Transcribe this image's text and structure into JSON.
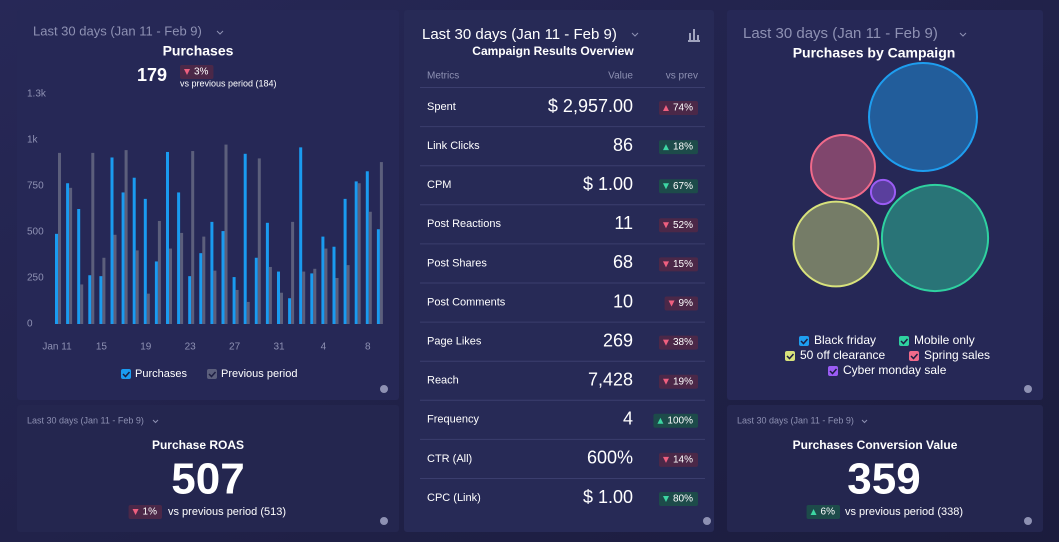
{
  "chart_data": [
    {
      "type": "bar",
      "date_range": "Last 30 days (Jan 11 - Feb 9)",
      "title": "Purchases",
      "categories": [
        "Jan 11",
        null,
        null,
        null,
        "15",
        null,
        null,
        null,
        "19",
        null,
        null,
        null,
        "23",
        null,
        null,
        null,
        "27",
        null,
        null,
        null,
        "31",
        null,
        null,
        null,
        "4",
        null,
        null,
        null,
        "8",
        null
      ],
      "series": [
        {
          "name": "Purchases",
          "color": "#1a9bf0",
          "values": [
            490,
            765,
            625,
            265,
            260,
            905,
            715,
            795,
            680,
            340,
            935,
            715,
            260,
            385,
            555,
            505,
            255,
            925,
            360,
            550,
            285,
            140,
            960,
            275,
            475,
            420,
            680,
            775,
            830,
            515
          ]
        },
        {
          "name": "Previous period",
          "color": "#5c5f7c",
          "values": [
            930,
            740,
            215,
            930,
            360,
            485,
            945,
            400,
            165,
            560,
            410,
            495,
            940,
            475,
            290,
            975,
            185,
            120,
            900,
            310,
            170,
            555,
            285,
            300,
            410,
            250,
            320,
            765,
            610,
            880
          ]
        }
      ],
      "ylim": [
        0,
        1250
      ],
      "yticks": [
        0,
        250,
        500,
        750,
        {
          "value": 1000,
          "label": "1k"
        },
        {
          "value": 1250,
          "label": "1.3k"
        }
      ],
      "grid": false
    },
    {
      "type": "bubble",
      "date_range": "Last 30 days (Jan 11 - Feb 9)",
      "title": "Purchases by Campaign",
      "series": [
        {
          "name": "Black friday",
          "color": "#1e9ef0",
          "values": [
            60
          ]
        },
        {
          "name": "Mobile only",
          "color": "#2fd1a0",
          "values": [
            58
          ]
        },
        {
          "name": "50 off clearance",
          "color": "#d8e27c",
          "values": [
            37
          ]
        },
        {
          "name": "Spring sales",
          "color": "#f06a8a",
          "values": [
            21
          ]
        },
        {
          "name": "Cyber monday sale",
          "color": "#9b5cf5",
          "values": [
            3
          ]
        }
      ]
    }
  ],
  "purchases_summary": {
    "value": "179",
    "change": "3%",
    "direction": "down",
    "tone": "bad",
    "note": "vs previous period (184)"
  },
  "table": {
    "date_range": "Last 30 days (Jan 11 - Feb 9)",
    "title": "Campaign Results Overview",
    "columns": [
      "Metrics",
      "Value",
      "vs prev"
    ],
    "rows": [
      {
        "metric": "Spent",
        "value": "$ 2,957.00",
        "change": "74%",
        "direction": "up",
        "tone": "bad"
      },
      {
        "metric": "Link Clicks",
        "value": "86",
        "change": "18%",
        "direction": "up",
        "tone": "good"
      },
      {
        "metric": "CPM",
        "value": "$ 1.00",
        "change": "67%",
        "direction": "down",
        "tone": "good"
      },
      {
        "metric": "Post Reactions",
        "value": "11",
        "change": "52%",
        "direction": "down",
        "tone": "bad"
      },
      {
        "metric": "Post Shares",
        "value": "68",
        "change": "15%",
        "direction": "down",
        "tone": "bad"
      },
      {
        "metric": "Post Comments",
        "value": "10",
        "change": "9%",
        "direction": "down",
        "tone": "bad"
      },
      {
        "metric": "Page Likes",
        "value": "269",
        "change": "38%",
        "direction": "down",
        "tone": "bad"
      },
      {
        "metric": "Reach",
        "value": "7,428",
        "change": "19%",
        "direction": "down",
        "tone": "bad"
      },
      {
        "metric": "Frequency",
        "value": "4",
        "change": "100%",
        "direction": "up",
        "tone": "good"
      },
      {
        "metric": "CTR (All)",
        "value": "600%",
        "change": "14%",
        "direction": "down",
        "tone": "bad"
      },
      {
        "metric": "CPC (Link)",
        "value": "$ 1.00",
        "change": "80%",
        "direction": "down",
        "tone": "good"
      }
    ]
  },
  "roas": {
    "date_range": "Last 30 days (Jan 11 - Feb 9)",
    "title": "Purchase ROAS",
    "value": "507",
    "change": "1%",
    "direction": "down",
    "tone": "bad",
    "note": "vs previous period (513)"
  },
  "conversion_value": {
    "date_range": "Last 30 days (Jan 11 - Feb 9)",
    "title": "Purchases Conversion Value",
    "value": "359",
    "change": "6%",
    "direction": "up",
    "tone": "good",
    "note": "vs previous period (338)"
  }
}
